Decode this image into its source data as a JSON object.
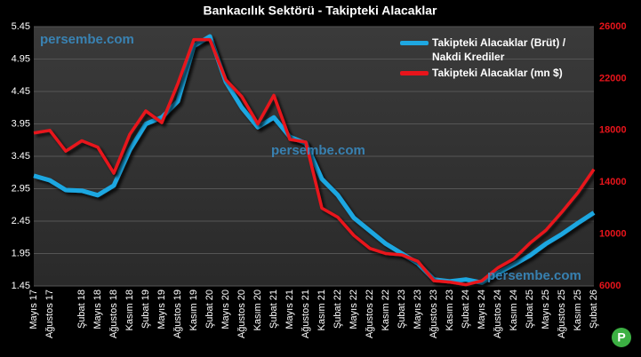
{
  "chart_data": {
    "type": "line",
    "title": "Bankacılık Sektörü - Takipteki Alacaklar",
    "annotations": [
      "persembe.com",
      "persembe.com",
      "persembe.com",
      "P"
    ],
    "categories": [
      "Mayıs 17",
      "Ağustos 17",
      null,
      "Şubat 18",
      "Mayıs 18",
      "Ağustos 18",
      "Kasım 18",
      "Şubat 19",
      "Mayıs 19",
      "Ağustos 19",
      "Kasım 19",
      "Şubat 20",
      "Mayıs 20",
      "Ağustos 20",
      "Kasım 20",
      "Şubat 21",
      "Mayıs 21",
      "Ağustos 21",
      "Kasım 21",
      "Şubat 22",
      "Mayıs 22",
      "Ağustos 22",
      "Kasım 22",
      "Şubat 23",
      "Mayıs 23",
      "Ağustos 23",
      "Kasım 23",
      "Şubat 24",
      "Mayıs 24",
      "Ağustos 24",
      "Kasım 24",
      "Şubat 25",
      "Mayıs 25",
      "Ağustos 25",
      "Kasım 25",
      "Şubat 26"
    ],
    "series": [
      {
        "name": "Takipteki Alacaklar (Brüt) / Nakdi Krediler",
        "color": "#1ea7e1",
        "axis": "y",
        "values": [
          3.15,
          3.08,
          2.93,
          2.92,
          2.85,
          3.0,
          3.55,
          3.95,
          4.05,
          4.3,
          5.15,
          5.3,
          4.6,
          4.2,
          3.9,
          4.05,
          3.75,
          3.65,
          3.1,
          2.85,
          2.5,
          2.3,
          2.1,
          1.95,
          1.8,
          1.55,
          1.52,
          1.55,
          1.5,
          1.65,
          1.78,
          1.92,
          2.1,
          2.25,
          2.42,
          2.58
        ]
      },
      {
        "name": "Takipteki Alacaklar (mn $)",
        "color": "#e8141b",
        "axis": "y2",
        "values": [
          17800,
          18000,
          16400,
          17200,
          16700,
          14700,
          17700,
          19500,
          18600,
          21600,
          25000,
          25000,
          21900,
          20600,
          18500,
          20700,
          17300,
          17100,
          12000,
          11300,
          9900,
          8900,
          8500,
          8400,
          7900,
          6400,
          6300,
          6100,
          6400,
          7400,
          8100,
          9300,
          10300,
          11700,
          13200,
          15000
        ]
      }
    ],
    "ylim": [
      1.45,
      5.45
    ],
    "yticks": [
      1.45,
      1.95,
      2.45,
      2.95,
      3.45,
      3.95,
      4.45,
      4.95,
      5.45
    ],
    "y2lim": [
      6000,
      26000
    ],
    "y2ticks": [
      6000,
      10000,
      14000,
      18000,
      22000,
      26000
    ],
    "grid": true
  }
}
